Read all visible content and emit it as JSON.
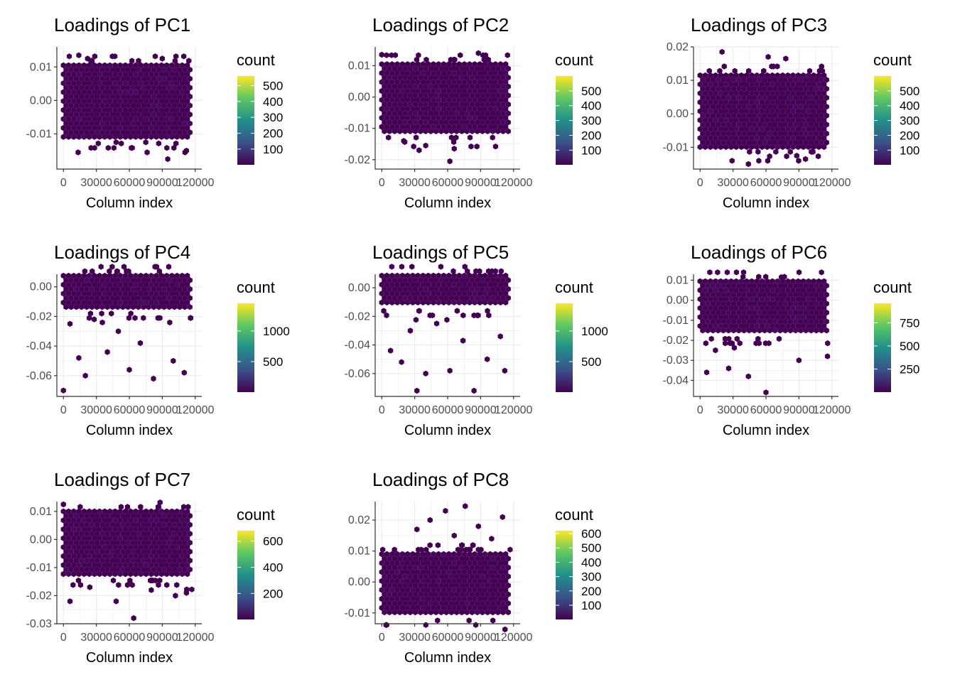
{
  "colors": {
    "fill": "#440154",
    "scale": [
      "#440154",
      "#3b528b",
      "#21908c",
      "#5dc863",
      "#fde725"
    ],
    "gridline": "#ebebeb",
    "border": "#333333"
  },
  "chart_data": [
    {
      "type": "heatmap",
      "title": "Loadings of PC1",
      "xlabel": "Column index",
      "ylabel": "",
      "xlim": [
        -6000,
        126000
      ],
      "xticks": [
        0,
        30000,
        60000,
        90000,
        120000
      ],
      "xtick_labels": [
        "0",
        "30000",
        "60000",
        "90000",
        "120000"
      ],
      "ylim": [
        -0.0205,
        0.016
      ],
      "yticks": [
        0.01,
        0.0,
        -0.01
      ],
      "ytick_labels": [
        "0.01",
        "0.00",
        "-0.01"
      ],
      "dense_band": [
        -0.0115,
        0.0105
      ],
      "outliers": [
        [
          14000,
          0.0135
        ],
        [
          22000,
          0.0125
        ],
        [
          48000,
          -0.0125
        ],
        [
          90000,
          0.0125
        ],
        [
          75000,
          -0.0125
        ],
        [
          112000,
          -0.015
        ],
        [
          95000,
          -0.0175
        ]
      ],
      "legend": {
        "title": "count",
        "ticks": [
          100,
          200,
          300,
          400,
          500
        ],
        "labels": [
          "100",
          "200",
          "300",
          "400",
          "500"
        ],
        "range": [
          1,
          560
        ]
      }
    },
    {
      "type": "heatmap",
      "title": "Loadings of PC2",
      "xlabel": "Column index",
      "ylabel": "",
      "xlim": [
        -6000,
        126000
      ],
      "xticks": [
        0,
        30000,
        60000,
        90000,
        120000
      ],
      "xtick_labels": [
        "0",
        "30000",
        "60000",
        "90000",
        "120000"
      ],
      "ylim": [
        -0.023,
        0.016
      ],
      "yticks": [
        0.01,
        0.0,
        -0.01,
        -0.02
      ],
      "ytick_labels": [
        "0.01",
        "0.00",
        "-0.01",
        "-0.02"
      ],
      "dense_band": [
        -0.0115,
        0.0105
      ],
      "outliers": [
        [
          0,
          0.0135
        ],
        [
          88000,
          0.014
        ],
        [
          34000,
          -0.017
        ],
        [
          66000,
          -0.0165
        ],
        [
          62000,
          -0.0205
        ],
        [
          40000,
          -0.0155
        ],
        [
          20000,
          -0.014
        ]
      ],
      "legend": {
        "title": "count",
        "ticks": [
          100,
          200,
          300,
          400,
          500
        ],
        "labels": [
          "100",
          "200",
          "300",
          "400",
          "500"
        ],
        "range": [
          1,
          600
        ]
      }
    },
    {
      "type": "heatmap",
      "title": "Loadings of PC3",
      "xlabel": "Column index",
      "ylabel": "",
      "xlim": [
        -6000,
        126000
      ],
      "xticks": [
        0,
        30000,
        60000,
        90000,
        120000
      ],
      "xtick_labels": [
        "0",
        "30000",
        "60000",
        "90000",
        "120000"
      ],
      "ylim": [
        -0.0165,
        0.02
      ],
      "yticks": [
        0.02,
        0.01,
        0.0,
        -0.01
      ],
      "ytick_labels": [
        "0.02",
        "0.01",
        "0.00",
        "-0.01"
      ],
      "dense_band": [
        -0.01,
        0.0115
      ],
      "outliers": [
        [
          20000,
          0.0185
        ],
        [
          62000,
          0.017
        ],
        [
          78000,
          0.0165
        ],
        [
          110000,
          0.013
        ],
        [
          44000,
          -0.015
        ],
        [
          96000,
          -0.0135
        ],
        [
          88000,
          -0.0125
        ]
      ],
      "legend": {
        "title": "count",
        "ticks": [
          100,
          200,
          300,
          400,
          500
        ],
        "labels": [
          "100",
          "200",
          "300",
          "400",
          "500"
        ],
        "range": [
          1,
          600
        ]
      }
    },
    {
      "type": "heatmap",
      "title": "Loadings of PC4",
      "xlabel": "Column index",
      "ylabel": "",
      "xlim": [
        -6000,
        126000
      ],
      "xticks": [
        0,
        30000,
        60000,
        90000,
        120000
      ],
      "xtick_labels": [
        "0",
        "30000",
        "60000",
        "90000",
        "120000"
      ],
      "ylim": [
        -0.074,
        0.0085
      ],
      "yticks": [
        0.0,
        -0.02,
        -0.04,
        -0.06
      ],
      "ytick_labels": [
        "0.00",
        "-0.02",
        "-0.04",
        "-0.06"
      ],
      "dense_band": [
        -0.015,
        0.0075
      ],
      "outliers": [
        [
          0,
          -0.07
        ],
        [
          20000,
          -0.06
        ],
        [
          82000,
          -0.062
        ],
        [
          14000,
          -0.048
        ],
        [
          40000,
          -0.044
        ],
        [
          60000,
          -0.056
        ],
        [
          100000,
          -0.05
        ],
        [
          6000,
          -0.025
        ],
        [
          50000,
          -0.03
        ],
        [
          70000,
          -0.038
        ],
        [
          110000,
          -0.058
        ],
        [
          28000,
          -0.022
        ]
      ],
      "legend": {
        "title": "count",
        "ticks": [
          500,
          1000
        ],
        "labels": [
          "500",
          "1000"
        ],
        "range": [
          1,
          1450
        ]
      }
    },
    {
      "type": "heatmap",
      "title": "Loadings of PC5",
      "xlabel": "Column index",
      "ylabel": "",
      "xlim": [
        -6000,
        126000
      ],
      "xticks": [
        0,
        30000,
        60000,
        90000,
        120000
      ],
      "xtick_labels": [
        "0",
        "30000",
        "60000",
        "90000",
        "120000"
      ],
      "ylim": [
        -0.076,
        0.0095
      ],
      "yticks": [
        0.0,
        -0.02,
        -0.04,
        -0.06
      ],
      "ytick_labels": [
        "0.00",
        "-0.02",
        "-0.04",
        "-0.06"
      ],
      "dense_band": [
        -0.013,
        0.0085
      ],
      "outliers": [
        [
          32000,
          -0.072
        ],
        [
          84000,
          -0.072
        ],
        [
          62000,
          -0.058
        ],
        [
          8000,
          -0.044
        ],
        [
          18000,
          -0.052
        ],
        [
          40000,
          -0.06
        ],
        [
          96000,
          -0.05
        ],
        [
          108000,
          -0.034
        ],
        [
          50000,
          -0.025
        ],
        [
          74000,
          -0.037
        ],
        [
          26000,
          -0.03
        ],
        [
          112000,
          -0.058
        ]
      ],
      "legend": {
        "title": "count",
        "ticks": [
          500,
          1000
        ],
        "labels": [
          "500",
          "1000"
        ],
        "range": [
          1,
          1450
        ]
      }
    },
    {
      "type": "heatmap",
      "title": "Loadings of PC6",
      "xlabel": "Column index",
      "ylabel": "",
      "xlim": [
        -6000,
        126000
      ],
      "xticks": [
        0,
        30000,
        60000,
        90000,
        120000
      ],
      "xtick_labels": [
        "0",
        "30000",
        "60000",
        "90000",
        "120000"
      ],
      "ylim": [
        -0.048,
        0.013
      ],
      "yticks": [
        0.01,
        0.0,
        -0.01,
        -0.02,
        -0.03,
        -0.04
      ],
      "ytick_labels": [
        "0.01",
        "0.00",
        "-0.01",
        "-0.02",
        "-0.03",
        "-0.04"
      ],
      "dense_band": [
        -0.017,
        0.0095
      ],
      "outliers": [
        [
          60000,
          -0.046
        ],
        [
          6000,
          -0.036
        ],
        [
          26000,
          -0.034
        ],
        [
          44000,
          -0.038
        ],
        [
          74000,
          0.0115
        ],
        [
          116000,
          -0.028
        ],
        [
          90000,
          -0.03
        ],
        [
          14000,
          -0.025
        ]
      ],
      "legend": {
        "title": "count",
        "ticks": [
          250,
          500,
          750
        ],
        "labels": [
          "250",
          "500",
          "750"
        ],
        "range": [
          1,
          960
        ]
      }
    },
    {
      "type": "heatmap",
      "title": "Loadings of PC7",
      "xlabel": "Column index",
      "ylabel": "",
      "xlim": [
        -6000,
        126000
      ],
      "xticks": [
        0,
        30000,
        60000,
        90000,
        120000
      ],
      "xtick_labels": [
        "0",
        "30000",
        "60000",
        "90000",
        "120000"
      ],
      "ylim": [
        -0.03,
        0.0135
      ],
      "yticks": [
        0.01,
        0.0,
        -0.01,
        -0.02,
        -0.03
      ],
      "ytick_labels": [
        "0.01",
        "0.00",
        "-0.01",
        "-0.02",
        "-0.03"
      ],
      "dense_band": [
        -0.013,
        0.01
      ],
      "outliers": [
        [
          0,
          0.0125
        ],
        [
          64000,
          -0.028
        ],
        [
          6000,
          -0.022
        ],
        [
          48000,
          -0.022
        ],
        [
          80000,
          -0.018
        ],
        [
          102000,
          -0.02
        ],
        [
          24000,
          -0.017
        ],
        [
          112000,
          -0.019
        ]
      ],
      "legend": {
        "title": "count",
        "ticks": [
          200,
          400,
          600
        ],
        "labels": [
          "200",
          "400",
          "600"
        ],
        "range": [
          1,
          680
        ]
      }
    },
    {
      "type": "heatmap",
      "title": "Loadings of PC8",
      "xlabel": "Column index",
      "ylabel": "",
      "xlim": [
        -6000,
        126000
      ],
      "xticks": [
        0,
        30000,
        60000,
        90000,
        120000
      ],
      "xtick_labels": [
        "0",
        "30000",
        "60000",
        "90000",
        "120000"
      ],
      "ylim": [
        -0.0135,
        0.026
      ],
      "yticks": [
        0.02,
        0.01,
        0.0,
        -0.01
      ],
      "ytick_labels": [
        "0.02",
        "0.01",
        "0.00",
        "-0.01"
      ],
      "dense_band": [
        -0.011,
        0.009
      ],
      "outliers": [
        [
          58000,
          0.023
        ],
        [
          76000,
          0.0245
        ],
        [
          110000,
          0.021
        ],
        [
          32000,
          0.017
        ],
        [
          88000,
          0.018
        ],
        [
          44000,
          0.02
        ],
        [
          66000,
          0.015
        ],
        [
          100000,
          0.014
        ]
      ],
      "legend": {
        "title": "count",
        "ticks": [
          100,
          200,
          300,
          400,
          500,
          600
        ],
        "labels": [
          "100",
          "200",
          "300",
          "400",
          "500",
          "600"
        ],
        "range": [
          1,
          620
        ]
      }
    }
  ]
}
